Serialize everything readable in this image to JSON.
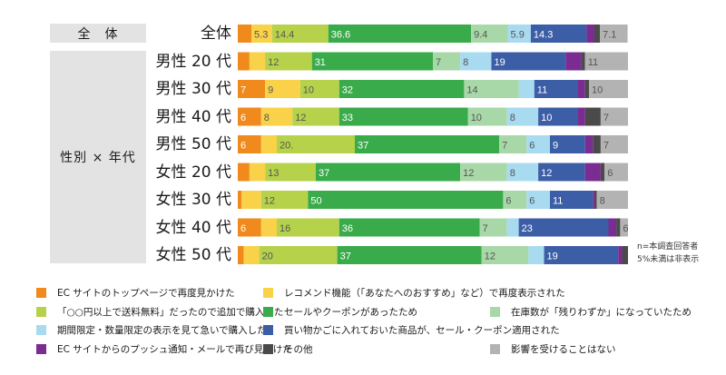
{
  "groups": {
    "all": "全　体",
    "by_gender_age": "性別 × 年代"
  },
  "notes": {
    "n_label": "n=本調査回答者",
    "small_label": "5%未満は非表示"
  },
  "colors": [
    "#f08a1d",
    "#f9d24a",
    "#b6d24a",
    "#3aab4a",
    "#a8d8a8",
    "#a8daf0",
    "#3c5ea6",
    "#7a2c92",
    "#4a4a4a",
    "#b3b3b3"
  ],
  "chart_data": {
    "type": "bar",
    "stacked": true,
    "orientation": "horizontal",
    "xlim": [
      0,
      100
    ],
    "categories": [
      "全体",
      "男性 20 代",
      "男性 30 代",
      "男性 40 代",
      "男性 50 代",
      "女性 20 代",
      "女性 30 代",
      "女性 40 代",
      "女性 50 代"
    ],
    "series": [
      {
        "name": "EC サイトのトップページで再度見かけた",
        "values": [
          3.5,
          3,
          7,
          6,
          6,
          3,
          1,
          6,
          1.5
        ],
        "labels": [
          "",
          "",
          "7",
          "6",
          "6",
          "",
          "",
          "6",
          ""
        ]
      },
      {
        "name": "レコメンド機能（「あなたへのおすすめ」など）で再度表示された",
        "values": [
          5.3,
          4,
          9,
          8,
          4,
          4,
          5,
          4,
          4
        ],
        "labels": [
          "5.3",
          "",
          "9",
          "8",
          "",
          "",
          "",
          "",
          ""
        ]
      },
      {
        "name": "「○○円以上で送料無料」だったので追加で購入した",
        "values": [
          14.4,
          12,
          10,
          12,
          20,
          13,
          12,
          16,
          20
        ],
        "labels": [
          "14.4",
          "12",
          "10",
          "12",
          "20.",
          "13",
          "12",
          "16",
          "20"
        ]
      },
      {
        "name": "セールやクーポンがあったため",
        "values": [
          36.6,
          31,
          32,
          33,
          37,
          37,
          50,
          36,
          37
        ],
        "labels": [
          "36.6",
          "31",
          "32",
          "33",
          "37",
          "37",
          "50",
          "36",
          "37"
        ]
      },
      {
        "name": "在庫数が「残りわずか」になっていたため",
        "values": [
          9.4,
          7,
          14,
          10,
          7,
          12,
          6,
          7,
          12
        ],
        "labels": [
          "9.4",
          "7",
          "14",
          "10",
          "7",
          "12",
          "6",
          "7",
          "12"
        ]
      },
      {
        "name": "期間限定・数量限定の表示を見て急いで購入した",
        "values": [
          5.9,
          8,
          4,
          8,
          6,
          8,
          6,
          3,
          4
        ],
        "labels": [
          "5.9",
          "8",
          "",
          "8",
          "6",
          "8",
          "6",
          "",
          ""
        ]
      },
      {
        "name": "買い物かごに入れておいた商品が、セール・クーポン適用された",
        "values": [
          14.3,
          19,
          11,
          10,
          9,
          12,
          11,
          23,
          19
        ],
        "labels": [
          "14.3",
          "19",
          "11",
          "10",
          "9",
          "12",
          "11",
          "23",
          "19"
        ]
      },
      {
        "name": "EC サイトからのプッシュ通知・メールで再び見かけた",
        "values": [
          2,
          4,
          2,
          2,
          2,
          4,
          0.5,
          2,
          1
        ],
        "labels": [
          "",
          "",
          "",
          "",
          "",
          "",
          "",
          "",
          ""
        ]
      },
      {
        "name": "その他",
        "values": [
          1.4,
          1,
          1,
          4,
          2,
          1,
          0.5,
          1,
          1.5
        ],
        "labels": [
          "",
          "",
          "",
          "",
          "",
          "",
          "",
          "",
          ""
        ]
      },
      {
        "name": "影響を受けることはない",
        "values": [
          7.1,
          11,
          10,
          7,
          7,
          6,
          8,
          6,
          0
        ],
        "labels": [
          "7.1",
          "11",
          "10",
          "7",
          "7",
          "6",
          "8",
          "6",
          ""
        ]
      }
    ]
  }
}
